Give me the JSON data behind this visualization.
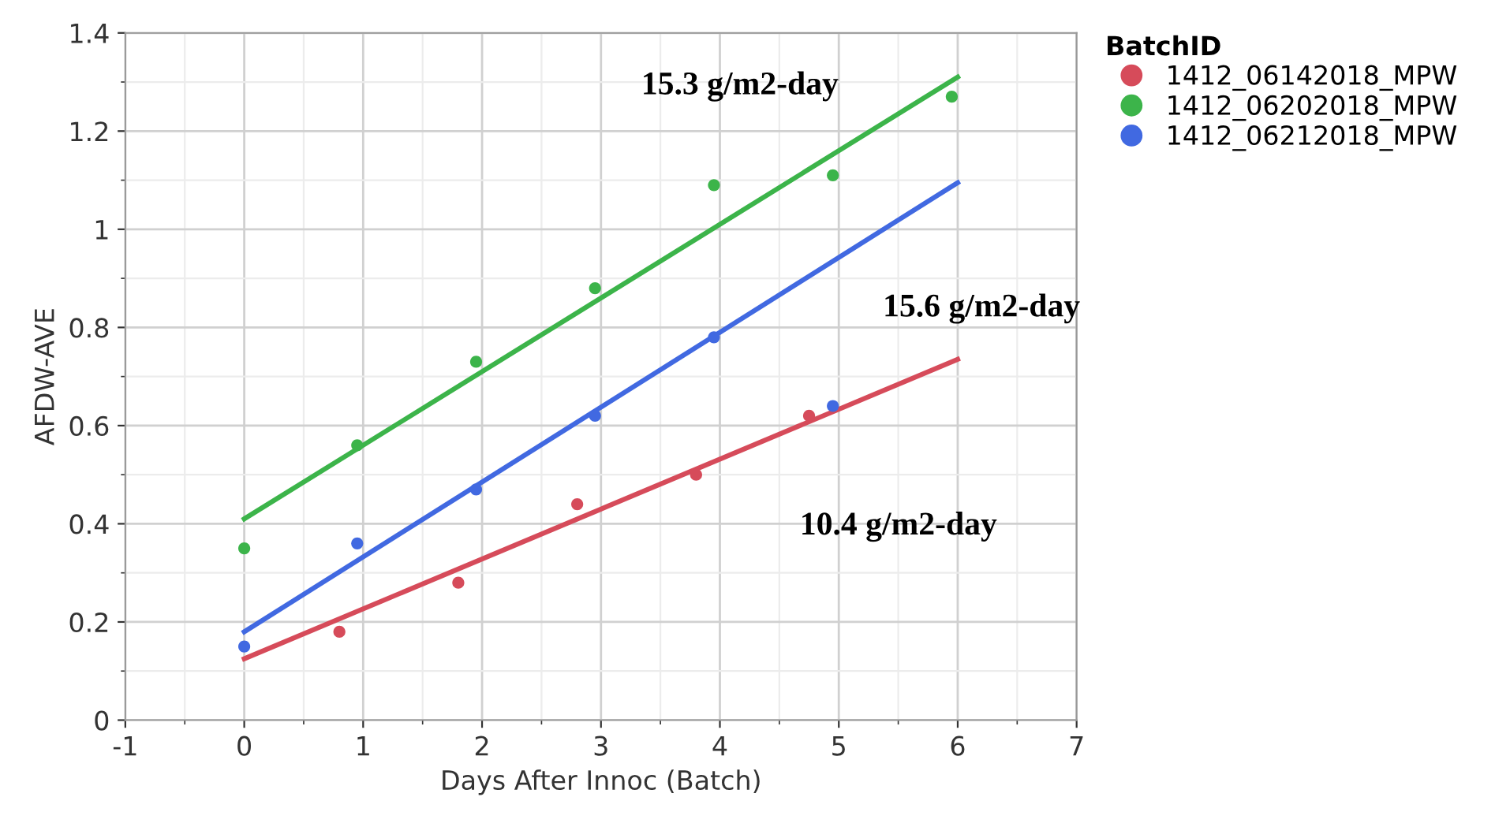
{
  "chart_data": {
    "type": "scatter",
    "xlabel": "Days After Innoc (Batch)",
    "ylabel": "AFDW-AVE",
    "legend_title": "BatchID",
    "legend": "top right",
    "grid": true,
    "marker": "circle",
    "xlim": [
      -1,
      7
    ],
    "xticks": [
      -1,
      0,
      1,
      2,
      3,
      4,
      5,
      6,
      7
    ],
    "ylim": [
      0,
      1.4
    ],
    "yticks": [
      0,
      0.2,
      0.4,
      0.6,
      0.8,
      1,
      1.2,
      1.4
    ],
    "series": [
      {
        "name": "1412_06142018_MPW",
        "color": "#d64b5a",
        "x": [
          0.8,
          1.8,
          2.8,
          3.8,
          4.75
        ],
        "values": [
          0.18,
          0.28,
          0.44,
          0.5,
          0.62
        ]
      },
      {
        "name": "1412_06202018_MPW",
        "color": "#3cb44a",
        "x": [
          0,
          0.95,
          1.95,
          2.95,
          3.95,
          4.95,
          5.95
        ],
        "values": [
          0.35,
          0.56,
          0.73,
          0.88,
          1.09,
          1.11,
          1.27
        ]
      },
      {
        "name": "1412_06212018_MPW",
        "color": "#4169e1",
        "x": [
          0,
          0.95,
          1.95,
          2.95,
          3.95,
          4.95
        ],
        "values": [
          0.15,
          0.36,
          0.47,
          0.62,
          0.78,
          0.64
        ]
      },
      {
        "type": "line",
        "marker": "none",
        "color": "#d64b5a",
        "x": [
          0,
          6
        ],
        "values": [
          0.125,
          0.735
        ]
      },
      {
        "type": "line",
        "marker": "none",
        "color": "#3cb44a",
        "x": [
          0,
          6
        ],
        "values": [
          0.41,
          1.31
        ]
      },
      {
        "type": "line",
        "marker": "none",
        "color": "#4169e1",
        "x": [
          0,
          6
        ],
        "values": [
          0.18,
          1.095
        ]
      }
    ],
    "annotations": [
      "15.3 g/m2-day",
      "15.6 g/m2-day",
      "10.4 g/m2-day"
    ]
  }
}
